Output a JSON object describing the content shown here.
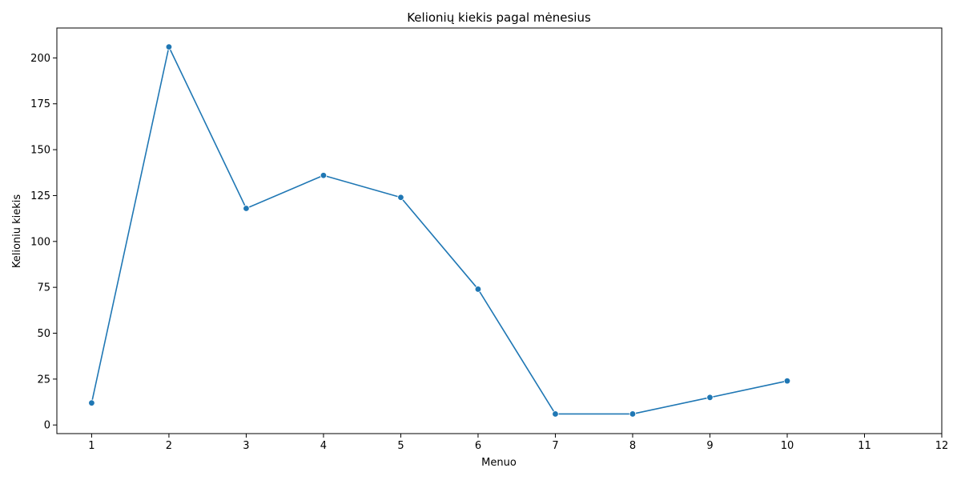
{
  "chart_data": {
    "type": "line",
    "title": "Kelionių kiekis pagal mėnesius",
    "xlabel": "Menuo",
    "ylabel": "Kelioniu kiekis",
    "x": [
      1,
      2,
      3,
      4,
      5,
      6,
      7,
      8,
      9,
      10
    ],
    "series": [
      {
        "values": [
          12,
          206,
          118,
          136,
          124,
          74,
          6,
          6,
          15,
          24
        ]
      }
    ],
    "xlim": [
      0.55,
      12
    ],
    "ylim": [
      -4.7,
      216.3
    ],
    "xticks": [
      1,
      2,
      3,
      4,
      5,
      6,
      7,
      8,
      9,
      10,
      11,
      12
    ],
    "yticks": [
      0,
      25,
      50,
      75,
      100,
      125,
      150,
      175,
      200
    ],
    "grid": false,
    "markers": true,
    "color": "#1f77b4"
  }
}
